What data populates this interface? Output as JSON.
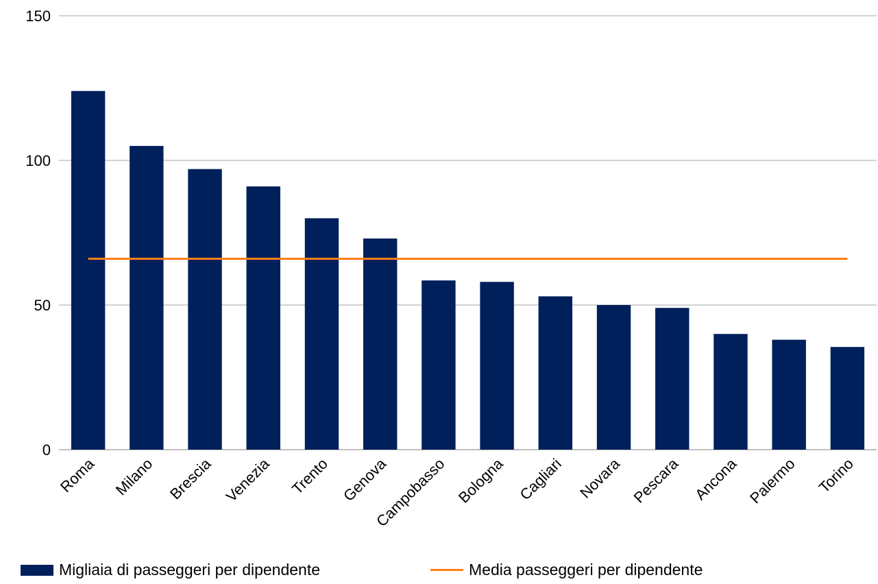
{
  "chart_data": {
    "type": "bar",
    "categories": [
      "Roma",
      "Milano",
      "Brescia",
      "Venezia",
      "Trento",
      "Genova",
      "Campobasso",
      "Bologna",
      "Cagliari",
      "Novara",
      "Pescara",
      "Ancona",
      "Palermo",
      "Torino"
    ],
    "series": [
      {
        "name": "Migliaia di passeggeri per dipendente",
        "type": "bar",
        "color": "#00205B",
        "values": [
          124,
          105,
          97,
          91,
          80,
          73,
          58.5,
          58,
          53,
          50,
          49,
          40,
          38,
          35.5
        ]
      },
      {
        "name": "Media passeggeri per dipendente",
        "type": "line",
        "color": "#FF7F11",
        "values": [
          66,
          66,
          66,
          66,
          66,
          66,
          66,
          66,
          66,
          66,
          66,
          66,
          66,
          66
        ]
      }
    ],
    "yticks": [
      "0",
      "50",
      "100",
      "150"
    ],
    "ylim": [
      0,
      150
    ],
    "grid": true,
    "legend_position": "bottom"
  }
}
